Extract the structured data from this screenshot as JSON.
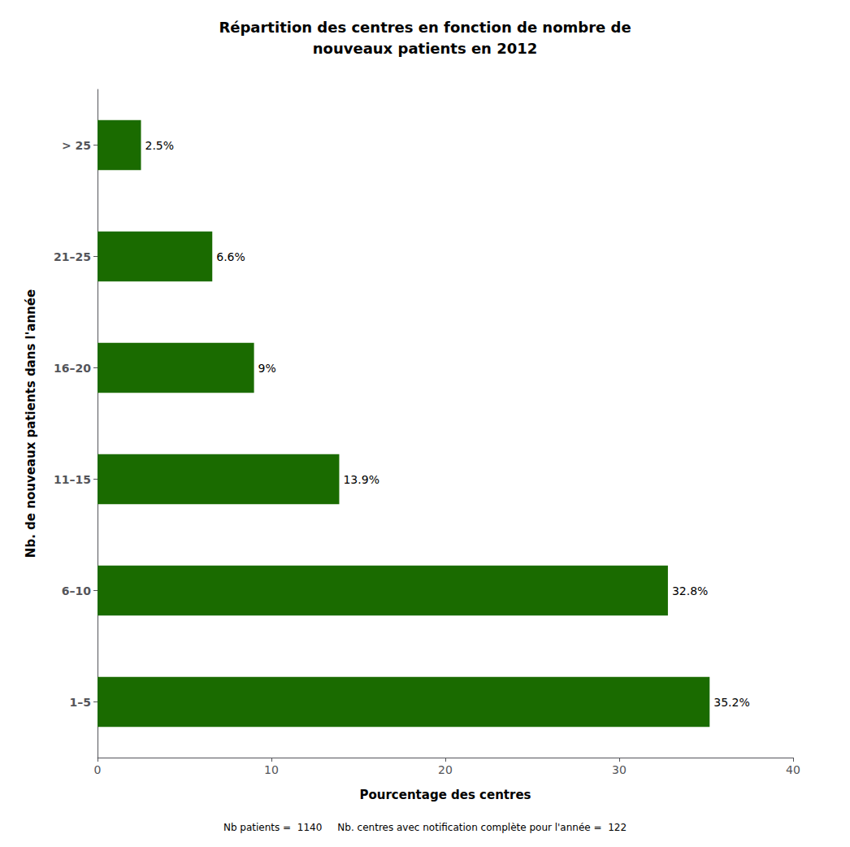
{
  "chart_data": {
    "type": "bar",
    "orientation": "horizontal",
    "title": "Répartition des centres en fonction de nombre de\nnouveaux patients en 2012",
    "categories": [
      "1–5",
      "6–10",
      "11–15",
      "16–20",
      "21–25",
      "> 25"
    ],
    "values": [
      35.2,
      32.8,
      13.9,
      9.0,
      6.6,
      2.5
    ],
    "value_labels": [
      "35.2%",
      "32.8%",
      "13.9%",
      "9%",
      "6.6%",
      "2.5%"
    ],
    "data_labels": true,
    "color": "#1a6b00",
    "xlabel": "Pourcentage des centres",
    "ylabel": "Nb. de nouveaux patients dans l'année",
    "xlim": [
      0,
      40
    ],
    "xticks": [
      0,
      10,
      20,
      30,
      40
    ],
    "grid": false,
    "annotations": [
      "Nb patients =  1140     Nb. centres avec notification complète pour l'année =  122"
    ]
  }
}
